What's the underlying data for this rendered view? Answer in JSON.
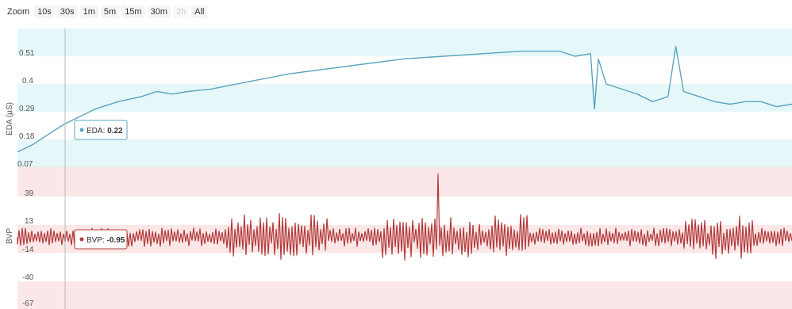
{
  "zoom": {
    "label": "Zoom",
    "buttons": [
      {
        "label": "10s",
        "enabled": true
      },
      {
        "label": "30s",
        "enabled": true
      },
      {
        "label": "1m",
        "enabled": true
      },
      {
        "label": "5m",
        "enabled": true
      },
      {
        "label": "15m",
        "enabled": true
      },
      {
        "label": "30m",
        "enabled": true
      },
      {
        "label": "2h",
        "enabled": false
      },
      {
        "label": "All",
        "enabled": true
      }
    ]
  },
  "colors": {
    "eda_line": "#5ba4bf",
    "eda_band": "#e6f7f9",
    "bvp_line": "#b23a3a",
    "bvp_band": "#fbe7e7",
    "crosshair": "#b8b8b8"
  },
  "chart_data": [
    {
      "type": "line",
      "name": "EDA",
      "ylabel": "EDA (µS)",
      "yticks": [
        "0.51",
        "0.4",
        "0.29",
        "0.18",
        "0.07"
      ],
      "ylim": [
        0.07,
        0.64
      ],
      "x": [
        0.0,
        0.02,
        0.04,
        0.06,
        0.08,
        0.1,
        0.13,
        0.16,
        0.18,
        0.2,
        0.22,
        0.25,
        0.3,
        0.35,
        0.4,
        0.45,
        0.5,
        0.55,
        0.6,
        0.65,
        0.7,
        0.72,
        0.74,
        0.745,
        0.75,
        0.76,
        0.8,
        0.82,
        0.84,
        0.85,
        0.86,
        0.87,
        0.9,
        0.92,
        0.94,
        0.96,
        0.98,
        1.0
      ],
      "y": [
        0.13,
        0.16,
        0.2,
        0.24,
        0.27,
        0.3,
        0.33,
        0.35,
        0.37,
        0.36,
        0.37,
        0.38,
        0.41,
        0.44,
        0.46,
        0.48,
        0.5,
        0.51,
        0.52,
        0.53,
        0.53,
        0.51,
        0.52,
        0.3,
        0.5,
        0.4,
        0.36,
        0.33,
        0.35,
        0.55,
        0.37,
        0.36,
        0.33,
        0.32,
        0.33,
        0.33,
        0.31,
        0.32
      ],
      "tooltip": {
        "label": "EDA",
        "value": "0.22"
      }
    },
    {
      "type": "line",
      "name": "BVP",
      "ylabel": "BVP",
      "yticks": [
        "39",
        "13",
        "-14",
        "-40",
        "-67"
      ],
      "ylim": [
        -67,
        66
      ],
      "tooltip": {
        "label": "BVP",
        "value": "-0.95"
      }
    }
  ]
}
